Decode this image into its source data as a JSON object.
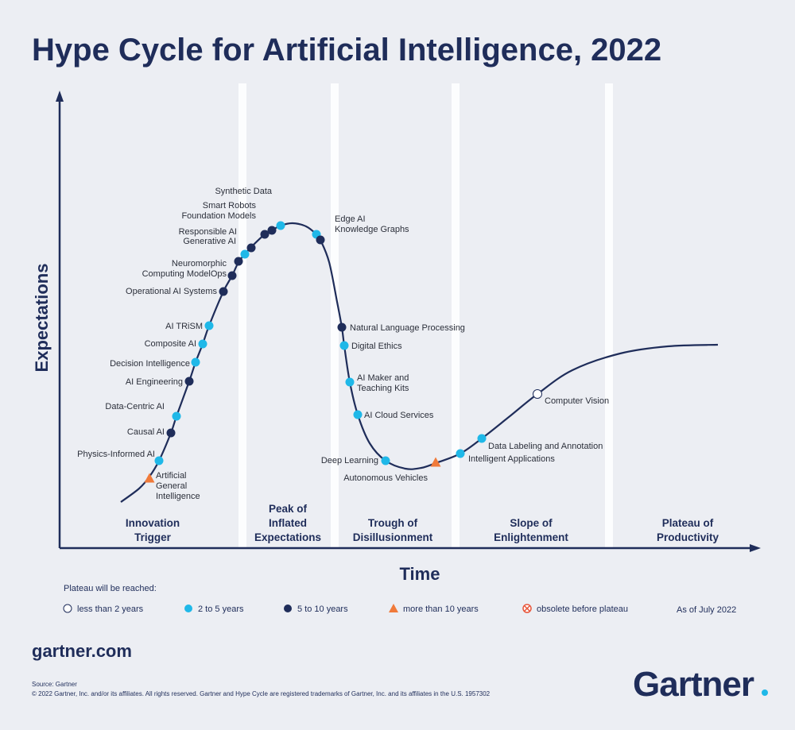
{
  "title": "Hype Cycle for Artificial Intelligence, 2022",
  "y_axis_label": "Expectations",
  "x_axis_label": "Time",
  "phases": [
    [
      "Innovation",
      "Trigger"
    ],
    [
      "Peak of",
      "Inflated",
      "Expectations"
    ],
    [
      "Trough of",
      "Disillusionment"
    ],
    [
      "Slope of",
      "Enlightenment"
    ],
    [
      "Plateau of",
      "Productivity"
    ]
  ],
  "technologies": [
    {
      "label": [
        "Artificial",
        "General",
        "Intelligence"
      ],
      "markers": [
        "triangle"
      ]
    },
    {
      "label": [
        "Physics-Informed AI"
      ],
      "markers": [
        "cyan"
      ]
    },
    {
      "label": [
        "Causal AI"
      ],
      "markers": [
        "navy"
      ]
    },
    {
      "label": [
        "Data-Centric AI"
      ],
      "markers": [
        "cyan"
      ]
    },
    {
      "label": [
        "AI Engineering"
      ],
      "markers": [
        "navy"
      ]
    },
    {
      "label": [
        "Decision Intelligence"
      ],
      "markers": [
        "cyan"
      ]
    },
    {
      "label": [
        "Composite AI"
      ],
      "markers": [
        "cyan"
      ]
    },
    {
      "label": [
        "AI TRiSM"
      ],
      "markers": [
        "cyan"
      ]
    },
    {
      "label": [
        "Operational AI Systems"
      ],
      "markers": [
        "navy"
      ]
    },
    {
      "label": [
        "Neuromorphic",
        "Computing ModelOps"
      ],
      "markers": [
        "navy",
        "navy"
      ]
    },
    {
      "label": [
        "Generative AI"
      ],
      "markers": [
        "cyan"
      ]
    },
    {
      "label": [
        "Responsible AI"
      ],
      "markers": [
        "navy"
      ]
    },
    {
      "label": [
        "Foundation Models"
      ],
      "markers": [
        "navy"
      ]
    },
    {
      "label": [
        "Smart Robots"
      ],
      "markers": [
        "navy"
      ]
    },
    {
      "label": [
        "Synthetic Data"
      ],
      "markers": [
        "cyan"
      ]
    },
    {
      "label": [
        "Edge AI"
      ],
      "markers": [
        "cyan"
      ]
    },
    {
      "label": [
        "Knowledge Graphs"
      ],
      "markers": [
        "navy"
      ]
    },
    {
      "label": [
        "Natural Language Processing"
      ],
      "markers": [
        "navy"
      ]
    },
    {
      "label": [
        "Digital Ethics"
      ],
      "markers": [
        "cyan"
      ]
    },
    {
      "label": [
        "AI Maker and",
        "Teaching Kits"
      ],
      "markers": [
        "cyan"
      ]
    },
    {
      "label": [
        "AI Cloud Services"
      ],
      "markers": [
        "cyan"
      ]
    },
    {
      "label": [
        "Deep Learning"
      ],
      "markers": [
        "cyan"
      ]
    },
    {
      "label": [
        "Autonomous Vehicles"
      ],
      "markers": [
        "triangle"
      ]
    },
    {
      "label": [
        "Intelligent Applications"
      ],
      "markers": [
        "cyan"
      ]
    },
    {
      "label": [
        "Data Labeling and Annotation"
      ],
      "markers": [
        "cyan"
      ]
    },
    {
      "label": [
        "Computer Vision"
      ],
      "markers": [
        "white"
      ]
    }
  ],
  "legend": {
    "title": "Plateau will be reached:",
    "items": [
      {
        "label": "less than 2 years",
        "marker": "white"
      },
      {
        "label": "2 to 5 years",
        "marker": "cyan"
      },
      {
        "label": "5 to 10 years",
        "marker": "navy"
      },
      {
        "label": "more than 10 years",
        "marker": "triangle"
      },
      {
        "label": "obsolete before plateau",
        "marker": "obsolete"
      }
    ],
    "as_of": "As of July 2022"
  },
  "footer": {
    "website": "gartner.com",
    "source": "Source: Gartner",
    "copyright": "© 2022 Gartner, Inc. and/or its affiliates. All rights reserved. Gartner and Hype Cycle are registered trademarks of Gartner, Inc. and its affiliates in the U.S. 1957302",
    "logo": "Gartner"
  }
}
